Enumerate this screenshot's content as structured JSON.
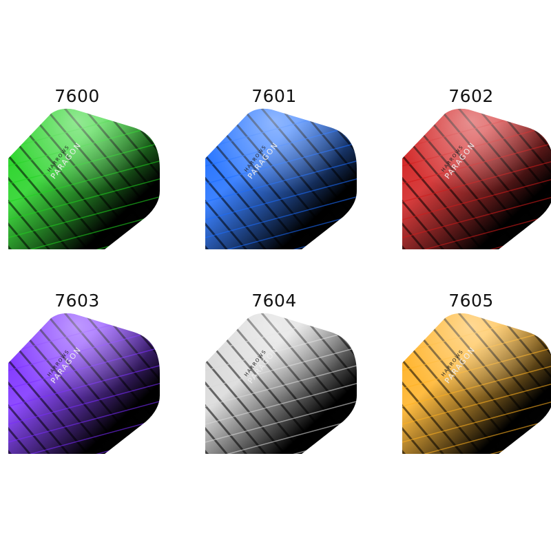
{
  "brand": {
    "maker": "HARROWS",
    "line": "PARAGON"
  },
  "products": [
    {
      "code": "7600",
      "color": "#1fd21f"
    },
    {
      "code": "7601",
      "color": "#1a6cff"
    },
    {
      "code": "7602",
      "color": "#d01a1a"
    },
    {
      "code": "7603",
      "color": "#7a2cff"
    },
    {
      "code": "7604",
      "color": "#d8d8d8"
    },
    {
      "code": "7605",
      "color": "#ffb020"
    }
  ]
}
